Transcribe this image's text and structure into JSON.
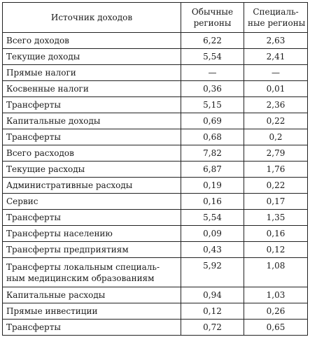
{
  "table": {
    "headers": {
      "source": "Источник доходов",
      "ordinary": [
        "Обычные",
        "регионы"
      ],
      "special": [
        "Специаль-",
        "ные регионы"
      ]
    },
    "rows": [
      {
        "source": "Всего доходов",
        "ordinary": "6,22",
        "special": "2,63"
      },
      {
        "source": "Текущие доходы",
        "ordinary": "5,54",
        "special": "2,41"
      },
      {
        "source": "Прямые налоги",
        "ordinary": "—",
        "special": "—"
      },
      {
        "source": "Косвенные налоги",
        "ordinary": "0,36",
        "special": "0,01"
      },
      {
        "source": "Трансферты",
        "ordinary": "5,15",
        "special": "2,36"
      },
      {
        "source": "Капитальные доходы",
        "ordinary": "0,69",
        "special": "0,22"
      },
      {
        "source": "Трансферты",
        "ordinary": "0,68",
        "special": "0,2"
      },
      {
        "source": "Всего расходов",
        "ordinary": "7,82",
        "special": "2,79"
      },
      {
        "source": "Текущие расходы",
        "ordinary": "6,87",
        "special": "1,76"
      },
      {
        "source": "Административные расходы",
        "ordinary": "0,19",
        "special": "0,22"
      },
      {
        "source": "Сервис",
        "ordinary": "0,16",
        "special": "0,17"
      },
      {
        "source": "Трансферты",
        "ordinary": "5,54",
        "special": "1,35"
      },
      {
        "source": "Трансферты населению",
        "ordinary": "0,09",
        "special": "0,16"
      },
      {
        "source": "Трансферты предприятиям",
        "ordinary": "0,43",
        "special": "0,12"
      },
      {
        "source": "Трансферты локальным специаль-ным медицинским образованиям",
        "ordinary": "5,92",
        "special": "1,08",
        "tall": true
      },
      {
        "source": "Капитальные расходы",
        "ordinary": "0,94",
        "special": "1,03"
      },
      {
        "source": "Прямые инвестиции",
        "ordinary": "0,12",
        "special": "0,26"
      },
      {
        "source": "Трансферты",
        "ordinary": "0,72",
        "special": "0,65"
      }
    ]
  }
}
